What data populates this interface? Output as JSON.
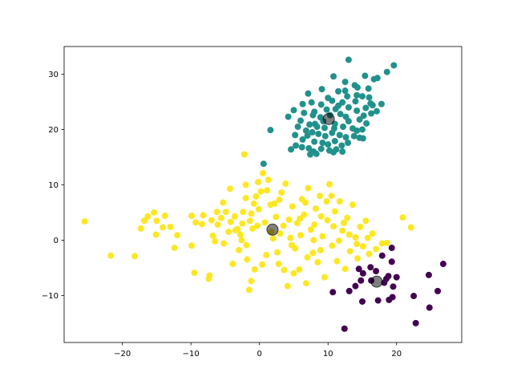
{
  "chart_data": {
    "type": "scatter",
    "title": "",
    "xlabel": "",
    "ylabel": "",
    "xlim": [
      -28.5,
      29.5
    ],
    "ylim": [
      -18.5,
      35.0
    ],
    "xticks": [
      -20,
      -10,
      0,
      10,
      20
    ],
    "yticks": [
      -10,
      0,
      10,
      20,
      30
    ],
    "grid": false,
    "series": [
      {
        "color": "#21918c",
        "points": [
          [
            13.0,
            32.6
          ],
          [
            19.6,
            31.6
          ],
          [
            10.8,
            29.6
          ],
          [
            15.4,
            29.7
          ],
          [
            16.7,
            29.1
          ],
          [
            18.6,
            30.4
          ],
          [
            17.2,
            29.3
          ],
          [
            12.5,
            28.6
          ],
          [
            13.9,
            28.0
          ],
          [
            14.3,
            27.6
          ],
          [
            12.5,
            27.0
          ],
          [
            9.1,
            27.3
          ],
          [
            7.1,
            26.5
          ],
          [
            15.9,
            27.4
          ],
          [
            11.5,
            26.9
          ],
          [
            12.8,
            26.0
          ],
          [
            10.0,
            25.7
          ],
          [
            10.6,
            25.2
          ],
          [
            14.2,
            26.2
          ],
          [
            15.0,
            26.0
          ],
          [
            16.0,
            25.8
          ],
          [
            17.8,
            24.6
          ],
          [
            16.5,
            24.4
          ],
          [
            6.3,
            24.6
          ],
          [
            7.6,
            24.9
          ],
          [
            9.0,
            24.5
          ],
          [
            11.5,
            24.3
          ],
          [
            13.0,
            24.0
          ],
          [
            14.2,
            23.4
          ],
          [
            16.3,
            22.9
          ],
          [
            5.0,
            23.5
          ],
          [
            6.5,
            23.0
          ],
          [
            8.0,
            23.2
          ],
          [
            8.9,
            22.2
          ],
          [
            9.8,
            23.6
          ],
          [
            11.8,
            22.8
          ],
          [
            13.0,
            21.5
          ],
          [
            14.6,
            21.8
          ],
          [
            15.2,
            22.5
          ],
          [
            15.6,
            21.1
          ],
          [
            4.2,
            22.3
          ],
          [
            6.0,
            21.6
          ],
          [
            7.3,
            20.9
          ],
          [
            8.1,
            21.0
          ],
          [
            9.3,
            21.5
          ],
          [
            11.0,
            21.0
          ],
          [
            12.2,
            20.5
          ],
          [
            13.6,
            20.2
          ],
          [
            14.2,
            19.8
          ],
          [
            15.0,
            20.0
          ],
          [
            5.6,
            20.5
          ],
          [
            6.8,
            19.8
          ],
          [
            7.7,
            19.5
          ],
          [
            8.6,
            19.2
          ],
          [
            9.6,
            18.8
          ],
          [
            10.6,
            19.4
          ],
          [
            11.7,
            19.0
          ],
          [
            12.6,
            18.6
          ],
          [
            13.8,
            18.8
          ],
          [
            5.2,
            19.0
          ],
          [
            6.3,
            18.2
          ],
          [
            7.0,
            18.9
          ],
          [
            8.0,
            17.8
          ],
          [
            9.2,
            17.6
          ],
          [
            10.0,
            17.3
          ],
          [
            11.0,
            17.9
          ],
          [
            12.0,
            17.1
          ],
          [
            12.9,
            17.6
          ],
          [
            14.6,
            18.5
          ],
          [
            5.3,
            17.1
          ],
          [
            6.2,
            16.8
          ],
          [
            7.2,
            16.6
          ],
          [
            7.9,
            16.0
          ],
          [
            9.0,
            16.5
          ],
          [
            10.2,
            16.2
          ],
          [
            11.2,
            16.4
          ],
          [
            12.1,
            16.0
          ],
          [
            4.6,
            16.4
          ],
          [
            7.4,
            15.5
          ],
          [
            8.3,
            15.6
          ],
          [
            10.8,
            15.9
          ],
          [
            1.6,
            19.9
          ],
          [
            0.6,
            13.8
          ],
          [
            15.1,
            18.4
          ],
          [
            16.2,
            24.7
          ],
          [
            17.1,
            23.3
          ],
          [
            15.5,
            23.9
          ],
          [
            14.0,
            25.1
          ],
          [
            12.1,
            24.9
          ],
          [
            11.1,
            23.7
          ],
          [
            10.3,
            22.6
          ],
          [
            9.5,
            20.3
          ],
          [
            8.4,
            20.5
          ],
          [
            10.9,
            20.2
          ],
          [
            12.6,
            22.3
          ],
          [
            7.8,
            22.6
          ]
        ]
      },
      {
        "color": "#fde725",
        "points": [
          [
            -25.5,
            3.4
          ],
          [
            -21.7,
            -2.8
          ],
          [
            -18.2,
            -2.9
          ],
          [
            -17.3,
            2.1
          ],
          [
            -16.8,
            3.5
          ],
          [
            -16.3,
            4.3
          ],
          [
            -15.4,
            5.0
          ],
          [
            -15.0,
            3.5
          ],
          [
            -15.1,
            1.0
          ],
          [
            -14.1,
            2.3
          ],
          [
            -13.8,
            4.4
          ],
          [
            -13.0,
            2.4
          ],
          [
            -12.4,
            -1.4
          ],
          [
            -12.0,
            0.9
          ],
          [
            -9.9,
            4.4
          ],
          [
            -9.3,
            3.2
          ],
          [
            -8.4,
            2.9
          ],
          [
            -8.2,
            4.5
          ],
          [
            -9.9,
            -1.0
          ],
          [
            -9.5,
            -5.9
          ],
          [
            -7.3,
            -6.4
          ],
          [
            -7.4,
            -7.0
          ],
          [
            -7.0,
            3.6
          ],
          [
            -6.8,
            0.8
          ],
          [
            -6.2,
            5.1
          ],
          [
            -6.1,
            2.8
          ],
          [
            -5.6,
            4.0
          ],
          [
            -5.3,
            6.8
          ],
          [
            -4.9,
            5.1
          ],
          [
            -4.2,
            3.3
          ],
          [
            -4.3,
            9.3
          ],
          [
            -3.9,
            -4.3
          ],
          [
            -3.6,
            4.3
          ],
          [
            -3.5,
            1.8
          ],
          [
            -3.0,
            -1.8
          ],
          [
            -2.8,
            1.0
          ],
          [
            -2.5,
            3.0
          ],
          [
            -2.2,
            15.5
          ],
          [
            -2.0,
            7.6
          ],
          [
            -1.8,
            -3.5
          ],
          [
            -1.5,
            -9.0
          ],
          [
            -1.2,
            4.8
          ],
          [
            -0.8,
            6.6
          ],
          [
            -0.5,
            7.9
          ],
          [
            -0.3,
            2.6
          ],
          [
            -0.1,
            5.6
          ],
          [
            0.2,
            8.8
          ],
          [
            0.5,
            12.1
          ],
          [
            0.8,
            3.2
          ],
          [
            1.0,
            -2.7
          ],
          [
            1.3,
            10.9
          ],
          [
            1.6,
            6.4
          ],
          [
            2.0,
            0.3
          ],
          [
            2.4,
            4.2
          ],
          [
            2.8,
            -4.3
          ],
          [
            3.2,
            8.6
          ],
          [
            3.5,
            2.6
          ],
          [
            3.8,
            10.2
          ],
          [
            4.1,
            -8.3
          ],
          [
            4.5,
            0.4
          ],
          [
            4.8,
            6.1
          ],
          [
            5.2,
            -1.5
          ],
          [
            5.5,
            3.1
          ],
          [
            5.8,
            -5.3
          ],
          [
            6.2,
            7.4
          ],
          [
            6.5,
            4.6
          ],
          [
            6.8,
            -7.8
          ],
          [
            7.1,
            9.4
          ],
          [
            7.5,
            1.9
          ],
          [
            7.8,
            -2.3
          ],
          [
            8.2,
            5.7
          ],
          [
            8.5,
            -4.0
          ],
          [
            8.8,
            8.0
          ],
          [
            9.2,
            0.7
          ],
          [
            9.5,
            -6.7
          ],
          [
            9.9,
            3.6
          ],
          [
            10.2,
            10.1
          ],
          [
            10.6,
            -1.0
          ],
          [
            11.0,
            5.2
          ],
          [
            11.3,
            -3.8
          ],
          [
            11.7,
            7.0
          ],
          [
            12.1,
            1.7
          ],
          [
            12.5,
            -5.2
          ],
          [
            12.8,
            4.0
          ],
          [
            13.2,
            -2.0
          ],
          [
            13.6,
            6.4
          ],
          [
            14.0,
            0.5
          ],
          [
            14.3,
            -3.3
          ],
          [
            14.7,
            2.4
          ],
          [
            15.1,
            -1.1
          ],
          [
            15.5,
            3.5
          ],
          [
            16.0,
            -2.5
          ],
          [
            16.5,
            1.2
          ],
          [
            17.0,
            -1.6
          ],
          [
            17.9,
            -0.6
          ],
          [
            18.6,
            -0.5
          ],
          [
            20.9,
            4.1
          ],
          [
            22.1,
            2.3
          ],
          [
            -1.2,
            -7.4
          ],
          [
            -0.7,
            -5.3
          ],
          [
            -1.9,
            -0.9
          ],
          [
            0.4,
            -4.4
          ],
          [
            2.6,
            -2.2
          ],
          [
            3.6,
            -5.4
          ],
          [
            4.3,
            3.7
          ],
          [
            5.0,
            -6.0
          ],
          [
            6.0,
            0.9
          ],
          [
            7.0,
            -3.1
          ],
          [
            8.0,
            2.8
          ],
          [
            9.0,
            4.3
          ],
          [
            10.5,
            8.0
          ],
          [
            11.6,
            -0.1
          ],
          [
            12.3,
            3.1
          ],
          [
            13.1,
            1.0
          ],
          [
            -2.6,
            0.0
          ],
          [
            -3.2,
            2.0
          ],
          [
            -5.2,
            -0.6
          ],
          [
            -6.5,
            -0.2
          ],
          [
            -4.5,
            1.5
          ],
          [
            -1.0,
            2.1
          ],
          [
            1.7,
            1.5
          ],
          [
            2.2,
            6.6
          ],
          [
            3.0,
            1.2
          ],
          [
            4.7,
            -0.9
          ],
          [
            5.9,
            3.9
          ],
          [
            6.7,
            6.8
          ],
          [
            7.9,
            0.0
          ],
          [
            8.9,
            -1.8
          ],
          [
            9.8,
            7.0
          ],
          [
            10.8,
            2.5
          ],
          [
            14.2,
            -0.7
          ],
          [
            15.8,
            0.4
          ],
          [
            -2.0,
            10.0
          ],
          [
            -0.2,
            10.5
          ],
          [
            1.1,
            9.0
          ],
          [
            2.9,
            7.3
          ],
          [
            -2.4,
            5.1
          ],
          [
            -1.4,
            3.5
          ]
        ]
      },
      {
        "color": "#440154",
        "points": [
          [
            17.9,
            -2.8
          ],
          [
            19.3,
            -1.4
          ],
          [
            19.3,
            -3.9
          ],
          [
            14.5,
            -5.2
          ],
          [
            15.1,
            -6.0
          ],
          [
            17.0,
            -5.6
          ],
          [
            18.8,
            -6.5
          ],
          [
            20.0,
            -6.7
          ],
          [
            14.8,
            -7.3
          ],
          [
            16.3,
            -7.3
          ],
          [
            18.2,
            -7.7
          ],
          [
            19.5,
            -8.4
          ],
          [
            13.1,
            -9.2
          ],
          [
            10.7,
            -9.4
          ],
          [
            15.0,
            -11.1
          ],
          [
            17.3,
            -10.9
          ],
          [
            18.9,
            -10.8
          ],
          [
            19.4,
            -10.3
          ],
          [
            22.5,
            -10.1
          ],
          [
            24.7,
            -6.3
          ],
          [
            26.0,
            -9.2
          ],
          [
            26.8,
            -4.3
          ],
          [
            24.8,
            -12.2
          ],
          [
            22.8,
            -15.0
          ],
          [
            12.4,
            -16.0
          ],
          [
            18.5,
            -7.0
          ],
          [
            16.2,
            -4.9
          ],
          [
            14.0,
            -8.3
          ]
        ]
      }
    ],
    "centroids": {
      "color": "#000000",
      "alpha": 0.5,
      "points": [
        [
          10.1,
          21.9
        ],
        [
          1.9,
          1.9
        ],
        [
          17.1,
          -7.5
        ]
      ]
    }
  }
}
